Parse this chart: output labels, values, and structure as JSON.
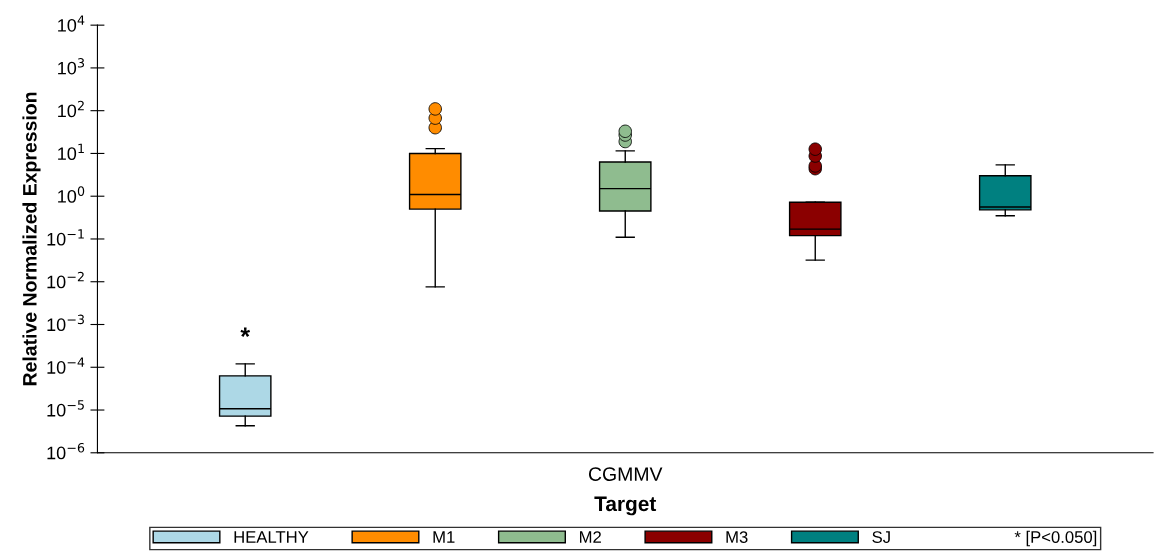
{
  "chart_data": {
    "type": "box",
    "xlabel": "Target",
    "ylabel": "Relative Normalized Expression",
    "categories": [
      "CGMMV"
    ],
    "log": "y",
    "ylim": [
      1e-06,
      10000
    ],
    "yticks": [
      {
        "value": 1e-06,
        "label": "10$^{−6}$"
      },
      {
        "value": 1e-05,
        "label": "10$^{−5}$"
      },
      {
        "value": 0.0001,
        "label": "10$^{−4}$"
      },
      {
        "value": 0.001,
        "label": "10$^{−3}$"
      },
      {
        "value": 0.01,
        "label": "10$^{−2}$"
      },
      {
        "value": 0.1,
        "label": "10$^{−1}$"
      },
      {
        "value": 1,
        "label": "10$^{0}$"
      },
      {
        "value": 10,
        "label": "10$^{1}$"
      },
      {
        "value": 100,
        "label": "10$^{2}$"
      },
      {
        "value": 1000,
        "label": "10$^{3}$"
      },
      {
        "value": 10000,
        "label": "10$^{4}$"
      }
    ],
    "grid": false,
    "legend": "bottom",
    "series": [
      {
        "name": "HEALTHY",
        "color": "#add8e6",
        "boxes": [
          {
            "low": 4.3e-06,
            "q1": 7.2e-06,
            "median": 1.07e-05,
            "q3": 6.3e-05,
            "high": 0.00012
          }
        ]
      },
      {
        "name": "M1",
        "color": "#ff8c00",
        "boxes": [
          {
            "low": 0.0076,
            "q1": 0.5,
            "median": 1.1,
            "q3": 10,
            "high": 13,
            "outliers": [
              40,
              67,
              110
            ]
          }
        ]
      },
      {
        "name": "M2",
        "color": "#8fbc8f",
        "boxes": [
          {
            "low": 0.11,
            "q1": 0.45,
            "median": 1.5,
            "q3": 6.3,
            "high": 11.5,
            "outliers": [
              19,
              27,
              33
            ]
          }
        ]
      },
      {
        "name": "M3",
        "color": "#8b0000",
        "boxes": [
          {
            "low": 0.032,
            "q1": 0.12,
            "median": 0.17,
            "q3": 0.72,
            "high": 0.72,
            "outliers": [
              4.4,
              5.1,
              8.7,
              12.6
            ]
          }
        ]
      },
      {
        "name": "SJ",
        "color": "#008080",
        "boxes": [
          {
            "low": 0.35,
            "q1": 0.48,
            "median": 0.56,
            "q3": 3.0,
            "high": 5.4
          }
        ]
      }
    ],
    "annotations": [
      "*",
      "* [P<0.050]"
    ]
  }
}
